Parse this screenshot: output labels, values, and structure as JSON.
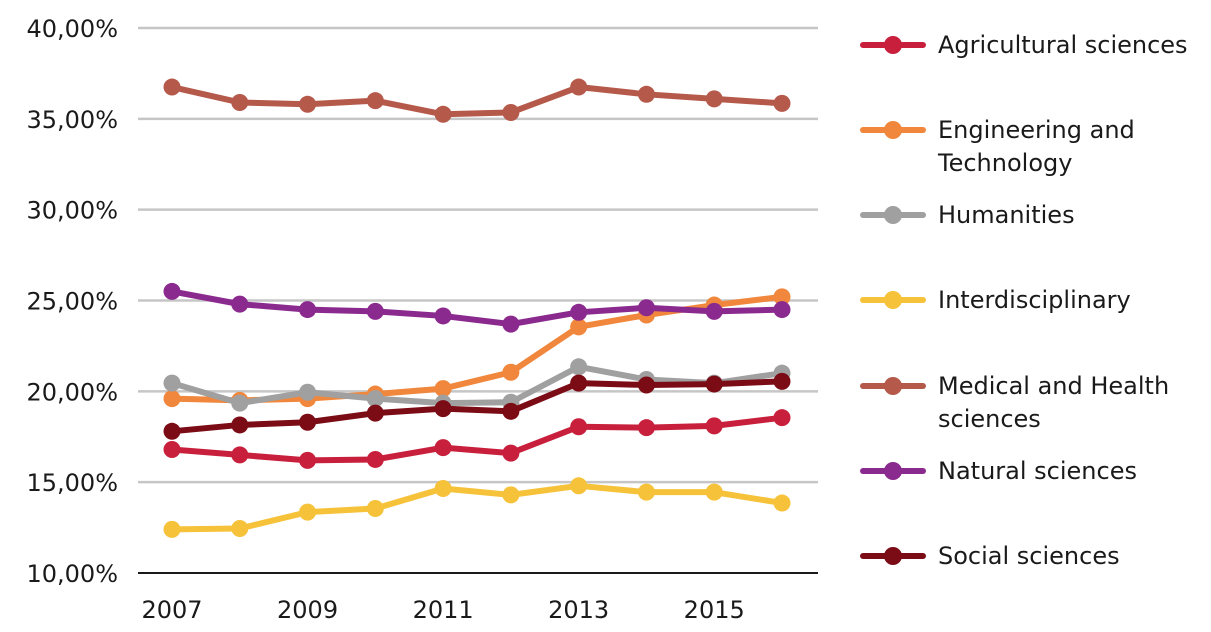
{
  "chart_data": {
    "type": "line",
    "title": "",
    "xlabel": "",
    "ylabel": "",
    "x": [
      2007,
      2008,
      2009,
      2010,
      2011,
      2012,
      2013,
      2014,
      2015,
      2016
    ],
    "x_tick_labels": [
      "2007",
      "2009",
      "2011",
      "2013",
      "2015"
    ],
    "x_tick_values": [
      2007,
      2009,
      2011,
      2013,
      2015
    ],
    "ylim": [
      10,
      40
    ],
    "y_tick_values": [
      10,
      15,
      20,
      25,
      30,
      35,
      40
    ],
    "y_tick_labels": [
      "10,00%",
      "15,00%",
      "20,00%",
      "25,00%",
      "30,00%",
      "35,00%",
      "40,00%"
    ],
    "grid": true,
    "legend_position": "right",
    "series": [
      {
        "name": "Agricultural sciences",
        "legend_lines": [
          "Agricultural sciences"
        ],
        "color": "#c8203c",
        "values": [
          16.8,
          16.5,
          16.2,
          16.25,
          16.9,
          16.6,
          18.05,
          18.0,
          18.1,
          18.55
        ]
      },
      {
        "name": "Engineering and Technology",
        "legend_lines": [
          "Engineering and",
          "Technology"
        ],
        "color": "#f0873c",
        "values": [
          19.6,
          19.5,
          19.6,
          19.85,
          20.15,
          21.05,
          23.55,
          24.2,
          24.75,
          25.2
        ]
      },
      {
        "name": "Humanities",
        "legend_lines": [
          "Humanities"
        ],
        "color": "#a0a0a0",
        "values": [
          20.45,
          19.35,
          19.95,
          19.6,
          19.35,
          19.4,
          21.35,
          20.65,
          20.45,
          21.0
        ]
      },
      {
        "name": "Interdisciplinary",
        "legend_lines": [
          "Interdisciplinary"
        ],
        "color": "#f6c23a",
        "values": [
          12.4,
          12.45,
          13.35,
          13.55,
          14.65,
          14.3,
          14.8,
          14.45,
          14.45,
          13.85
        ]
      },
      {
        "name": "Medical and Health sciences",
        "legend_lines": [
          "Medical and Health",
          "sciences"
        ],
        "color": "#b5594b",
        "values": [
          36.75,
          35.9,
          35.8,
          36.0,
          35.25,
          35.35,
          36.75,
          36.35,
          36.1,
          35.85
        ]
      },
      {
        "name": "Natural sciences",
        "legend_lines": [
          "Natural sciences"
        ],
        "color": "#8b2a8e",
        "values": [
          25.5,
          24.8,
          24.5,
          24.4,
          24.15,
          23.7,
          24.35,
          24.6,
          24.4,
          24.5
        ]
      },
      {
        "name": "Social sciences",
        "legend_lines": [
          "Social sciences"
        ],
        "color": "#7b0c16",
        "values": [
          17.8,
          18.15,
          18.3,
          18.8,
          19.05,
          18.9,
          20.45,
          20.35,
          20.4,
          20.55
        ]
      }
    ]
  }
}
